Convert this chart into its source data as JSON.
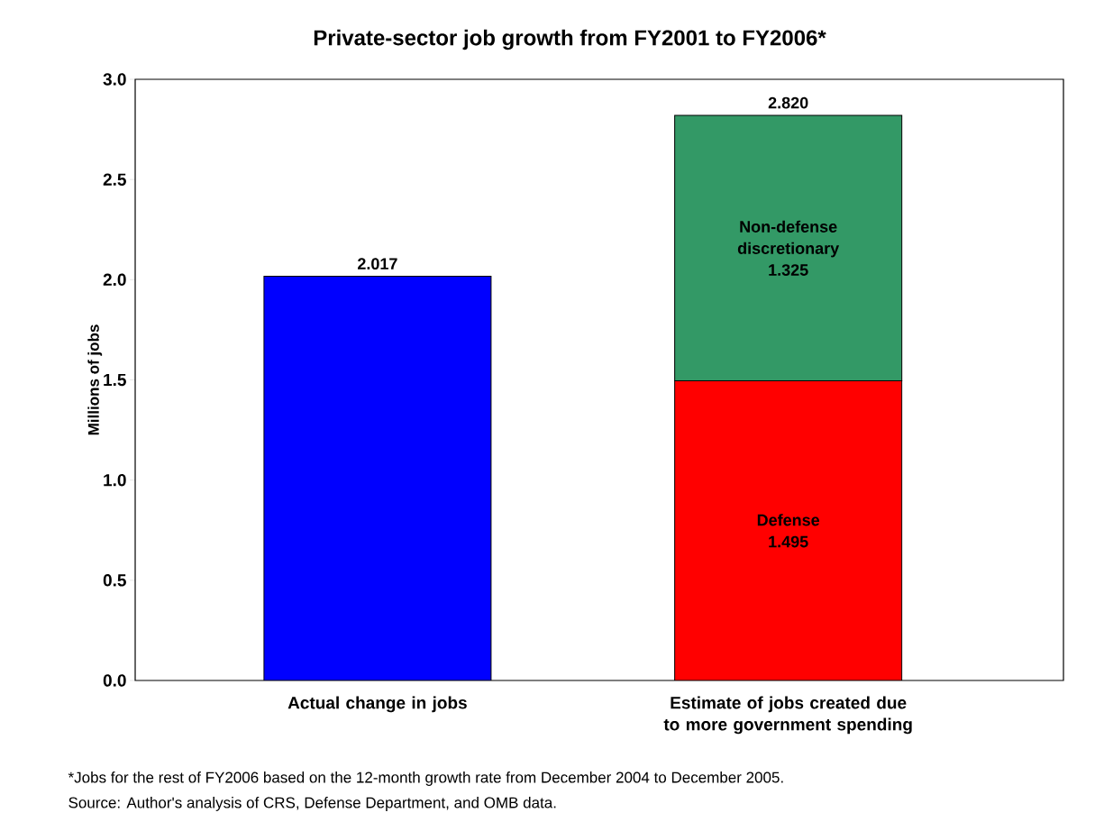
{
  "chart_data": {
    "type": "bar",
    "title": "Private-sector job growth from FY2001 to FY2006*",
    "ylabel": "Millions of jobs",
    "categories": [
      "Actual change in jobs",
      "Estimate of jobs created due to more government spending"
    ],
    "stacked": true,
    "series": [
      {
        "color": "#0000ff",
        "values": [
          2.017,
          null
        ],
        "value_labels": [
          "2.017",
          null
        ]
      },
      {
        "name": "Defense",
        "color": "#ff0000",
        "values": [
          null,
          1.495
        ],
        "value_labels": [
          null,
          "1.495"
        ]
      },
      {
        "name": "Non-defense discretionary",
        "color": "#339966",
        "values": [
          null,
          1.325
        ],
        "value_labels": [
          null,
          "1.325"
        ]
      }
    ],
    "totals": [
      null,
      "2.820"
    ],
    "ylim": [
      0,
      3
    ],
    "yticks": [
      {
        "value": 0,
        "label": "0.0"
      },
      {
        "value": 0.5,
        "label": "0.5"
      },
      {
        "value": 1,
        "label": "1.0"
      },
      {
        "value": 1.5,
        "label": "1.5"
      },
      {
        "value": 2,
        "label": "2.0"
      },
      {
        "value": 2.5,
        "label": "2.5"
      },
      {
        "value": 3,
        "label": "3.0"
      }
    ],
    "annotations": [
      "*Jobs for the rest of FY2006 based on the 12-month growth rate from December 2004 to December 2005.",
      "Source:  Author's analysis of CRS, Defense Department, and OMB data."
    ]
  }
}
